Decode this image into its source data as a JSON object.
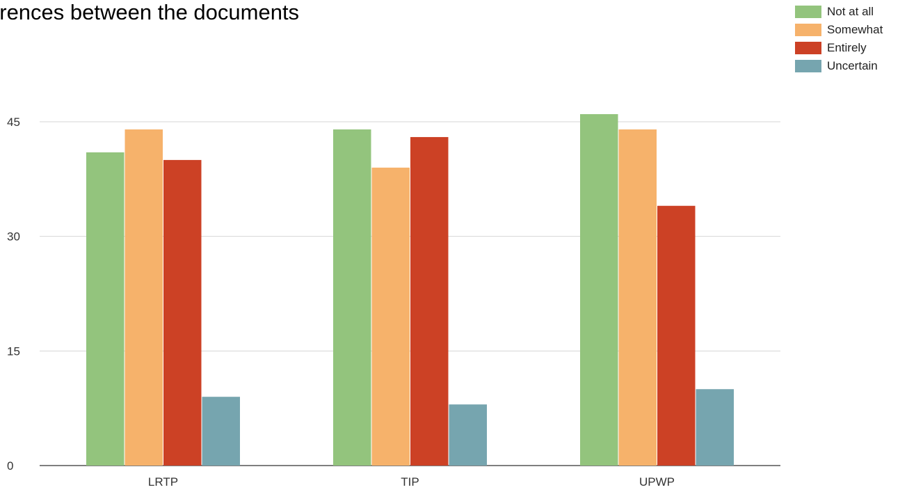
{
  "chart_data": {
    "type": "bar",
    "title": "erences between the documents",
    "categories": [
      "LRTP",
      "TIP",
      "UPWP"
    ],
    "series": [
      {
        "name": "Not at all",
        "color": "#93c47d",
        "values": [
          41,
          44,
          46
        ]
      },
      {
        "name": "Somewhat",
        "color": "#f6b26b",
        "values": [
          44,
          39,
          44
        ]
      },
      {
        "name": "Entirely",
        "color": "#cc4125",
        "values": [
          40,
          43,
          34
        ]
      },
      {
        "name": "Uncertain",
        "color": "#76a5af",
        "values": [
          9,
          8,
          10
        ]
      }
    ],
    "yticks": [
      "0",
      "15",
      "30",
      "45"
    ],
    "ylim": [
      0,
      45
    ],
    "grid": true,
    "legend_position": "top-right"
  }
}
